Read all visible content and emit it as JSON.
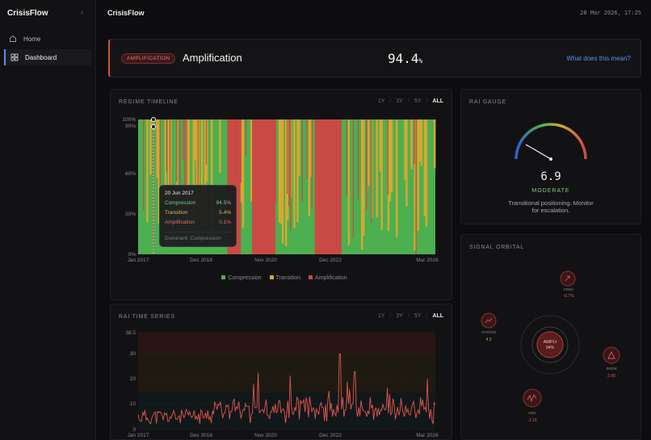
{
  "sidebar": {
    "brand": "CrisisFlow",
    "items": [
      {
        "label": "Home",
        "icon": "home-icon"
      },
      {
        "label": "Dashboard",
        "icon": "grid-icon"
      }
    ]
  },
  "header": {
    "title": "CrisisFlow",
    "datetime": "28 Mar 2026, 17:25"
  },
  "banner": {
    "pill": "AMPLIFICATION",
    "title": "Amplification",
    "value": "94.4",
    "unit": "%",
    "link": "What does this mean?"
  },
  "regime": {
    "title": "REGIME TIMELINE",
    "ranges": [
      "1Y",
      "3Y",
      "5Y",
      "ALL"
    ],
    "selected_range": "ALL",
    "yticks": [
      "100%",
      "90%",
      "60%",
      "30%",
      "0%"
    ],
    "xticks": [
      "Jan 2017",
      "Dec 2018",
      "Nov 2020",
      "Dec 2022",
      "Mar 2026"
    ],
    "legend": [
      "Compression",
      "Transition",
      "Amplification"
    ],
    "colors": {
      "compression": "#4caf50",
      "transition": "#d4a832",
      "amplification": "#c94a44"
    },
    "tooltip": {
      "date": "20 Jun 2017",
      "rows": [
        {
          "label": "Compression",
          "value": "94.5%"
        },
        {
          "label": "Transition",
          "value": "5.4%"
        },
        {
          "label": "Amplification",
          "value": "0.1%"
        }
      ],
      "dominant": "Dominant: Compression"
    }
  },
  "gauge": {
    "title": "RAI GAUGE",
    "value": "6.9",
    "status": "MODERATE",
    "desc1": "Transitional positioning. Monitor",
    "desc2": "for escalation."
  },
  "orbital": {
    "title": "SIGNAL ORBITAL",
    "center_label": "AMPLI",
    "center_value": "94%",
    "nodes": [
      {
        "name": "CRSH",
        "value": "-0.7%",
        "icon": "crash-icon"
      },
      {
        "name": "VVIX/VIX",
        "value": "4.3",
        "icon": "trend-icon"
      },
      {
        "name": "SKEW",
        "value": "3.90",
        "icon": "triangle-icon"
      },
      {
        "name": "GEX",
        "value": "-2.15",
        "icon": "wave-icon"
      }
    ]
  },
  "series": {
    "title": "RAI TIME SERIES",
    "ranges": [
      "1Y",
      "3Y",
      "5Y",
      "ALL"
    ],
    "selected_range": "ALL",
    "yticks": [
      "38.5",
      "30",
      "20",
      "10",
      "0"
    ],
    "xticks": [
      "Jan 2017",
      "Dec 2018",
      "Nov 2020",
      "Dec 2022",
      "Mar 2026"
    ]
  }
}
